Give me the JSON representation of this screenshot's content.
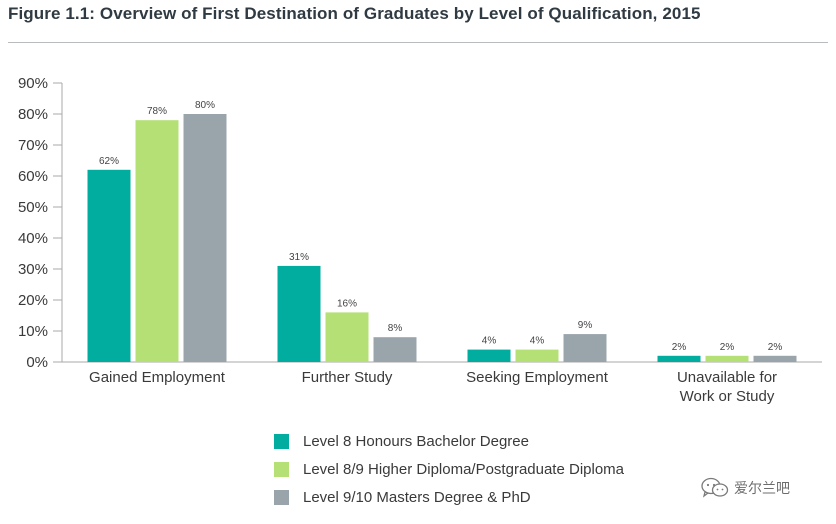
{
  "figure": {
    "title": "Figure 1.1:  Overview of First Destination of Graduates by Level of Qualification, 2015"
  },
  "colors": {
    "series": [
      "#00ad9f",
      "#b4e075",
      "#9aa4ab"
    ],
    "axis": "#aaaaaa",
    "rule": "#b9bcbf"
  },
  "chart_data": {
    "type": "bar",
    "title": "Overview of First Destination of Graduates by Level of Qualification, 2015",
    "xlabel": "",
    "ylabel": "",
    "ylim": [
      0,
      90
    ],
    "yticks": [
      "0%",
      "10%",
      "20%",
      "30%",
      "40%",
      "50%",
      "60%",
      "70%",
      "80%",
      "90%"
    ],
    "grid": false,
    "legend_position": "bottom",
    "categories": [
      [
        "Gained Employment"
      ],
      [
        "Further Study"
      ],
      [
        "Seeking Employment"
      ],
      [
        "Unavailable for",
        "Work or Study"
      ]
    ],
    "series": [
      {
        "name": "Level 8 Honours Bachelor Degree",
        "values": [
          62,
          31,
          4,
          2
        ],
        "labels": [
          "62%",
          "31%",
          "4%",
          "2%"
        ]
      },
      {
        "name": "Level 8/9 Higher Diploma/Postgraduate Diploma",
        "values": [
          78,
          16,
          4,
          2
        ],
        "labels": [
          "78%",
          "16%",
          "4%",
          "2%"
        ]
      },
      {
        "name": "Level 9/10 Masters Degree & PhD",
        "values": [
          80,
          8,
          9,
          2
        ],
        "labels": [
          "80%",
          "8%",
          "9%",
          "2%"
        ]
      }
    ]
  },
  "watermark": {
    "icon": "wechat-icon",
    "text": "爱尔兰吧"
  }
}
